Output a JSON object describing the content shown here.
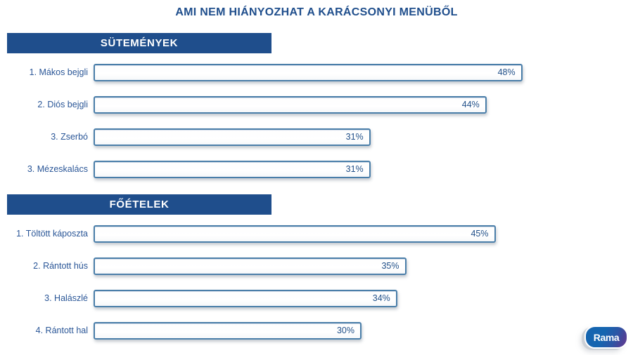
{
  "title": "AMI NEM HIÁNYOZHAT A KARÁCSONYI MENÜBŐL",
  "logo": {
    "text": "Rama"
  },
  "colors": {
    "primary_blue": "#1F4E8C",
    "bar_border": "#4A7EA9",
    "label_text": "#2A5697",
    "value_text": "#215089",
    "banner_text": "#FFFFFF",
    "background": "#FFFFFF",
    "logo_gradient_start": "#1565B0",
    "logo_gradient_end": "#653A90"
  },
  "chart_data": [
    {
      "type": "bar",
      "orientation": "horizontal",
      "section": "SÜTEMÉNYEK",
      "categories": [
        "1. Mákos bejgli",
        "2. Diós bejgli",
        "3. Zserbó",
        "3. Mézeskalács"
      ],
      "values": [
        48,
        44,
        31,
        31
      ],
      "value_suffix": "%",
      "xlim": [
        0,
        60
      ],
      "grid": false,
      "legend": false,
      "bar_style": "white-fill-blue-outline"
    },
    {
      "type": "bar",
      "orientation": "horizontal",
      "section": "FŐÉTELEK",
      "categories": [
        "1. Töltött káposzta",
        "2. Rántott hús",
        "3. Halászlé",
        "4. Rántott hal"
      ],
      "values": [
        45,
        35,
        34,
        30
      ],
      "value_suffix": "%",
      "xlim": [
        0,
        60
      ],
      "grid": false,
      "legend": false,
      "bar_style": "white-fill-blue-outline"
    }
  ]
}
